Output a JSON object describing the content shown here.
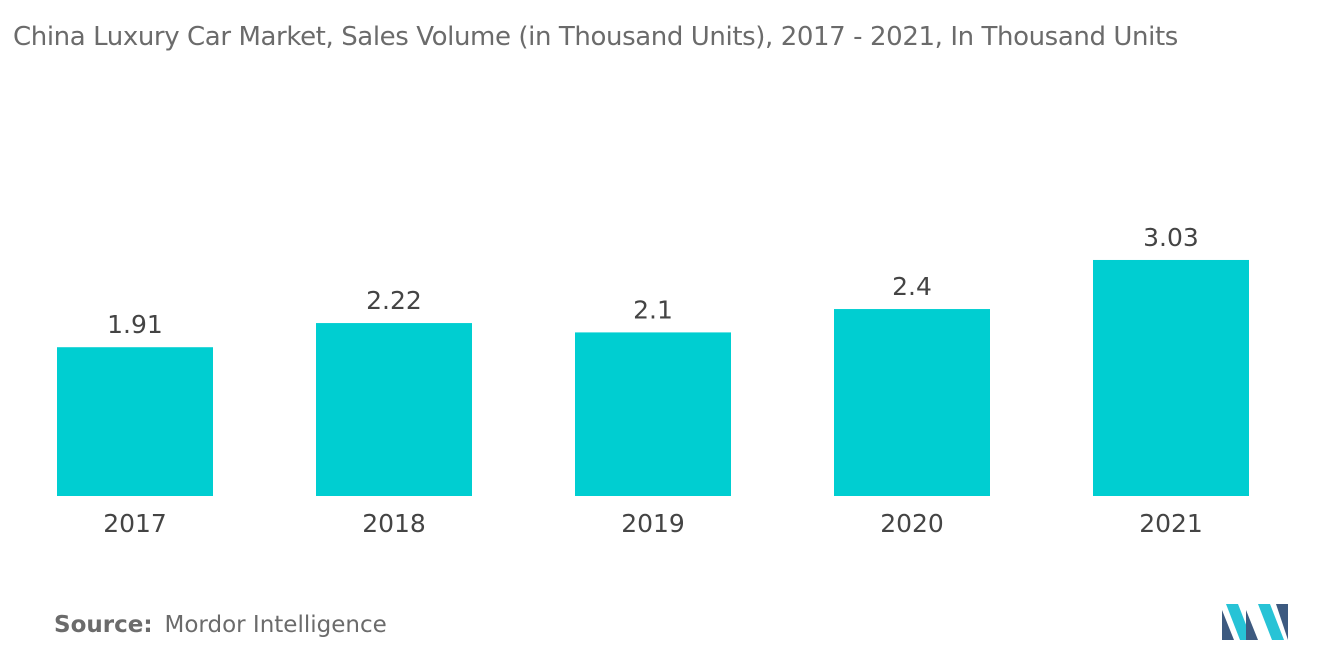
{
  "title": "China Luxury Car Market, Sales Volume (in Thousand Units), 2017 - 2021, In Thousand Units",
  "source": {
    "label": "Source:",
    "text": "Mordor Intelligence"
  },
  "colors": {
    "bar": "#00CED1",
    "text": "#444444",
    "title": "#6b6b6b",
    "logo_dark": "#3d5a80",
    "logo_light": "#27c3d6"
  },
  "chart_data": {
    "type": "bar",
    "title": "China Luxury Car Market, Sales Volume (in Thousand Units), 2017 - 2021, In Thousand Units",
    "categories": [
      "2017",
      "2018",
      "2019",
      "2020",
      "2021"
    ],
    "values": [
      1.91,
      2.22,
      2.1,
      2.4,
      3.03
    ],
    "value_labels": [
      "1.91",
      "2.22",
      "2.1",
      "2.4",
      "3.03"
    ],
    "xlabel": "",
    "ylabel": "",
    "grid": false,
    "legend": "none"
  }
}
